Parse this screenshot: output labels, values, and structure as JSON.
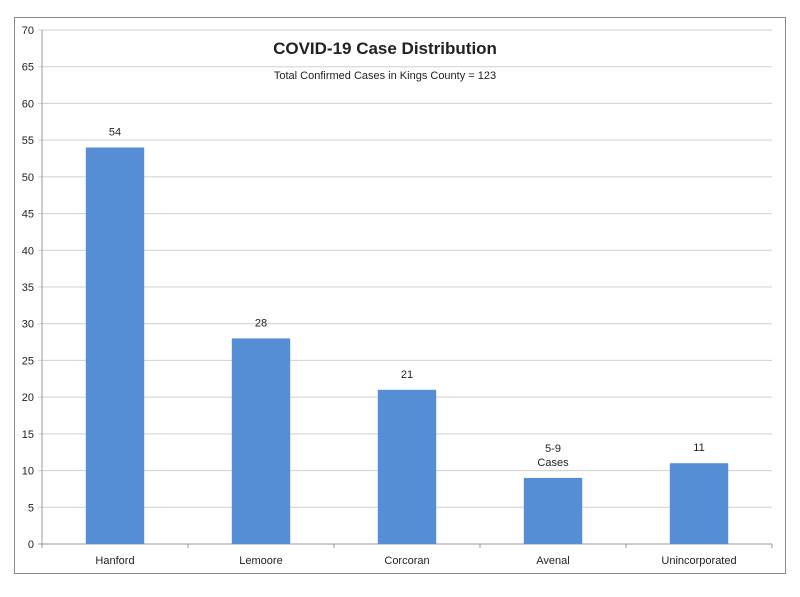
{
  "chart_data": {
    "type": "bar",
    "title": "COVID-19 Case Distribution",
    "subtitle": "Total Confirmed Cases in Kings County = 123",
    "categories": [
      "Hanford",
      "Lemoore",
      "Corcoran",
      "Avenal",
      "Unincorporated"
    ],
    "values": [
      54,
      28,
      21,
      9,
      11
    ],
    "data_labels": [
      "54",
      "28",
      "21",
      "5-9 Cases",
      "11"
    ],
    "ylim": [
      0,
      70
    ],
    "yticks": [
      0,
      5,
      10,
      15,
      20,
      25,
      30,
      35,
      40,
      45,
      50,
      55,
      60,
      65,
      70
    ],
    "grid": true,
    "legend": "none",
    "bar_color": "#558ed5"
  }
}
